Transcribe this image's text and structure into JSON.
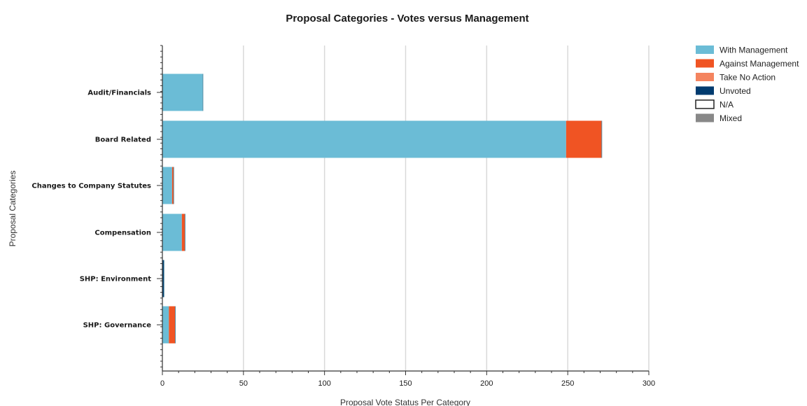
{
  "chart_data": {
    "type": "bar",
    "orientation": "horizontal",
    "stacked": true,
    "title": "Proposal Categories - Votes versus Management",
    "xlabel": "Proposal Vote Status Per Category",
    "ylabel": "Proposal Categories",
    "xlim": [
      0,
      300
    ],
    "xticks": [
      0,
      50,
      100,
      150,
      200,
      250,
      300
    ],
    "grid": "vertical",
    "legend_position": "top-right",
    "categories": [
      "Audit/Financials",
      "Board Related",
      "Changes to Company Statutes",
      "Compensation",
      "SHP: Environment",
      "SHP: Governance"
    ],
    "series": [
      {
        "name": "With Management",
        "color": "#6bbcd6",
        "values": [
          25,
          249,
          6,
          12,
          0,
          4
        ]
      },
      {
        "name": "Against Management",
        "color": "#f05423",
        "values": [
          0,
          22,
          1,
          2,
          0,
          4
        ]
      },
      {
        "name": "Take No Action",
        "color": "#f4845f",
        "values": [
          0,
          0,
          0,
          0,
          0,
          0
        ]
      },
      {
        "name": "Unvoted",
        "color": "#003b6f",
        "values": [
          0,
          0,
          0,
          0,
          1,
          0
        ]
      },
      {
        "name": "N/A",
        "color": "#ffffff",
        "values": [
          0,
          0,
          0,
          0,
          0,
          0
        ]
      },
      {
        "name": "Mixed",
        "color": "#888888",
        "values": [
          0,
          0,
          0,
          0,
          0,
          0
        ]
      }
    ]
  }
}
